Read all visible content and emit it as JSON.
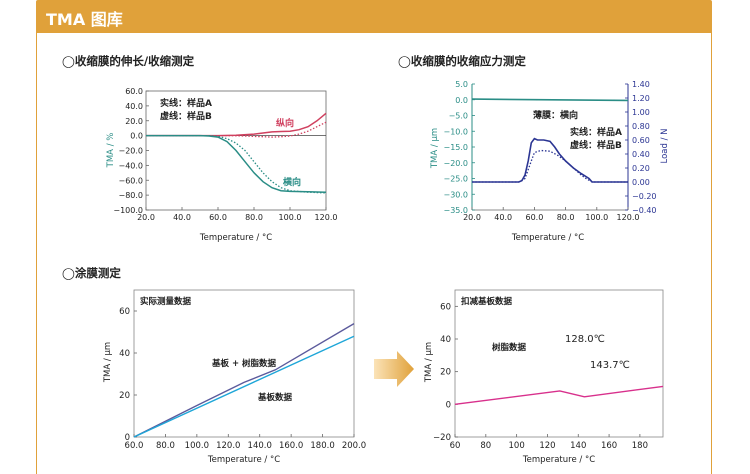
{
  "header": {
    "title": "TMA 图库"
  },
  "sections": {
    "s1": "◯收缩膜的伸长/收缩测定",
    "s2": "◯收缩膜的收缩应力测定",
    "s3": "◯涂膜测定"
  },
  "colors": {
    "accent": "#e0a13a",
    "teal": "#2a8d86",
    "crimson": "#d0405f",
    "navy": "#2b3593",
    "purple": "#5b5a9c",
    "cyan": "#1ea6d8",
    "magenta": "#d8308c"
  },
  "chart_data": [
    {
      "type": "line",
      "title": "收缩膜的伸长/收缩测定",
      "xlabel": "Temperature / °C",
      "ylabel": "TMA / %",
      "xlim": [
        20,
        120
      ],
      "ylim": [
        -100,
        60
      ],
      "xticks": [
        "20.0",
        "40.0",
        "60.0",
        "80.0",
        "100.0",
        "120.0"
      ],
      "yticks": [
        "60.0",
        "40.0",
        "20.0",
        "0.0",
        "−20.0",
        "−40.0",
        "−60.0",
        "−80.0",
        "−100.0"
      ],
      "legend": [
        "实线：样品A",
        "虚线：样品B"
      ],
      "series": [
        {
          "name": "纵向 样品A",
          "style": "solid",
          "color": "crimson",
          "x": [
            20,
            50,
            60,
            70,
            80,
            85,
            90,
            95,
            100,
            105,
            110,
            115,
            120
          ],
          "y": [
            0,
            0,
            0,
            0.5,
            2,
            3.5,
            5,
            5.5,
            6,
            8,
            12,
            20,
            30
          ]
        },
        {
          "name": "纵向 样品B",
          "style": "dotted",
          "color": "crimson",
          "x": [
            20,
            55,
            65,
            75,
            80,
            85,
            90,
            95,
            100,
            105,
            110,
            115,
            120
          ],
          "y": [
            0,
            0,
            0,
            -0.5,
            -1,
            -1.5,
            -2,
            -1.5,
            -0.5,
            2,
            6,
            12,
            18
          ]
        },
        {
          "name": "横向 样品A",
          "style": "solid",
          "color": "teal",
          "x": [
            20,
            50,
            55,
            60,
            65,
            70,
            75,
            80,
            85,
            90,
            95,
            100,
            110,
            120
          ],
          "y": [
            0,
            0,
            -0.5,
            -2,
            -8,
            -20,
            -35,
            -50,
            -62,
            -70,
            -74,
            -75,
            -75.5,
            -76
          ]
        },
        {
          "name": "横向 样品B",
          "style": "dotted",
          "color": "teal",
          "x": [
            20,
            55,
            60,
            65,
            70,
            75,
            80,
            85,
            90,
            95,
            100,
            110,
            120
          ],
          "y": [
            0,
            0,
            -1,
            -4,
            -10,
            -20,
            -35,
            -50,
            -62,
            -70,
            -74,
            -76,
            -77
          ]
        }
      ],
      "annotations": [
        "纵向",
        "横向"
      ]
    },
    {
      "type": "line",
      "title": "收缩膜的收缩应力测定",
      "xlabel": "Temperature / °C",
      "ylabel": "TMA / μm",
      "y2label": "Load / N",
      "xlim": [
        20,
        120
      ],
      "ylim": [
        -35,
        5
      ],
      "y2lim": [
        -0.4,
        1.4
      ],
      "xticks": [
        "20.0",
        "40.0",
        "60.0",
        "80.0",
        "100.0",
        "120.0"
      ],
      "yticks": [
        "5.0",
        "0.0",
        "−5.0",
        "−10.0",
        "−15.0",
        "−20.0",
        "−25.0",
        "−30.0",
        "−35.0"
      ],
      "y2ticks": [
        "1.40",
        "1.20",
        "1.00",
        "0.80",
        "0.60",
        "0.40",
        "0.20",
        "0.00",
        "−0.20",
        "−0.40"
      ],
      "legend": [
        "实线：样品A",
        "虚线：样品B"
      ],
      "series": [
        {
          "name": "TMA",
          "axis": "left",
          "style": "solid",
          "color": "teal",
          "x": [
            20,
            120
          ],
          "y": [
            0.2,
            -0.2
          ]
        },
        {
          "name": "Load 样品A",
          "axis": "right",
          "style": "solid",
          "color": "navy",
          "x": [
            20,
            50,
            52,
            54,
            56,
            58,
            60,
            62,
            66,
            70,
            73,
            76,
            80,
            85,
            90,
            95,
            97,
            100,
            120
          ],
          "y": [
            0,
            0,
            0.02,
            0.1,
            0.3,
            0.56,
            0.62,
            0.6,
            0.6,
            0.58,
            0.5,
            0.4,
            0.3,
            0.2,
            0.12,
            0.05,
            0,
            0,
            0
          ]
        },
        {
          "name": "Load 样品B",
          "axis": "right",
          "style": "dotted",
          "color": "navy",
          "x": [
            20,
            50,
            54,
            58,
            60,
            64,
            70,
            75,
            80,
            85,
            90,
            93,
            97,
            100,
            120
          ],
          "y": [
            0,
            0,
            0.05,
            0.3,
            0.42,
            0.45,
            0.44,
            0.38,
            0.3,
            0.2,
            0.1,
            0.05,
            0,
            0,
            0
          ]
        }
      ],
      "annotations": [
        "薄膜：横向"
      ]
    },
    {
      "type": "line",
      "title": "实际测量数据",
      "xlabel": "Temperature / °C",
      "ylabel": "TMA / μm",
      "xlim": [
        60,
        200
      ],
      "ylim": [
        0,
        70
      ],
      "xticks": [
        "60.0",
        "80.0",
        "100.0",
        "120.0",
        "140.0",
        "160.0",
        "180.0",
        "200.0"
      ],
      "yticks": [
        "60",
        "40",
        "20",
        "0"
      ],
      "series": [
        {
          "name": "基板 + 树脂数据",
          "color": "purple",
          "x": [
            60,
            100,
            130,
            150,
            200
          ],
          "y": [
            0,
            15,
            26,
            32,
            54
          ]
        },
        {
          "name": "基板数据",
          "color": "cyan",
          "x": [
            60,
            200
          ],
          "y": [
            0,
            48
          ]
        }
      ]
    },
    {
      "type": "line",
      "title": "扣减基板数据",
      "xlabel": "Temperature / °C",
      "ylabel": "TMA / μm",
      "xlim": [
        60,
        195
      ],
      "ylim": [
        -20,
        70
      ],
      "xticks": [
        "60",
        "80",
        "100",
        "120",
        "140",
        "160",
        "180"
      ],
      "yticks": [
        "60",
        "40",
        "20",
        "0",
        "−20"
      ],
      "series": [
        {
          "name": "树脂数据",
          "color": "magenta",
          "x": [
            60,
            128,
            144,
            195
          ],
          "y": [
            0,
            8.2,
            4.6,
            11
          ]
        }
      ],
      "annotations": [
        "树脂数据",
        "128.0℃",
        "143.7℃"
      ]
    }
  ]
}
